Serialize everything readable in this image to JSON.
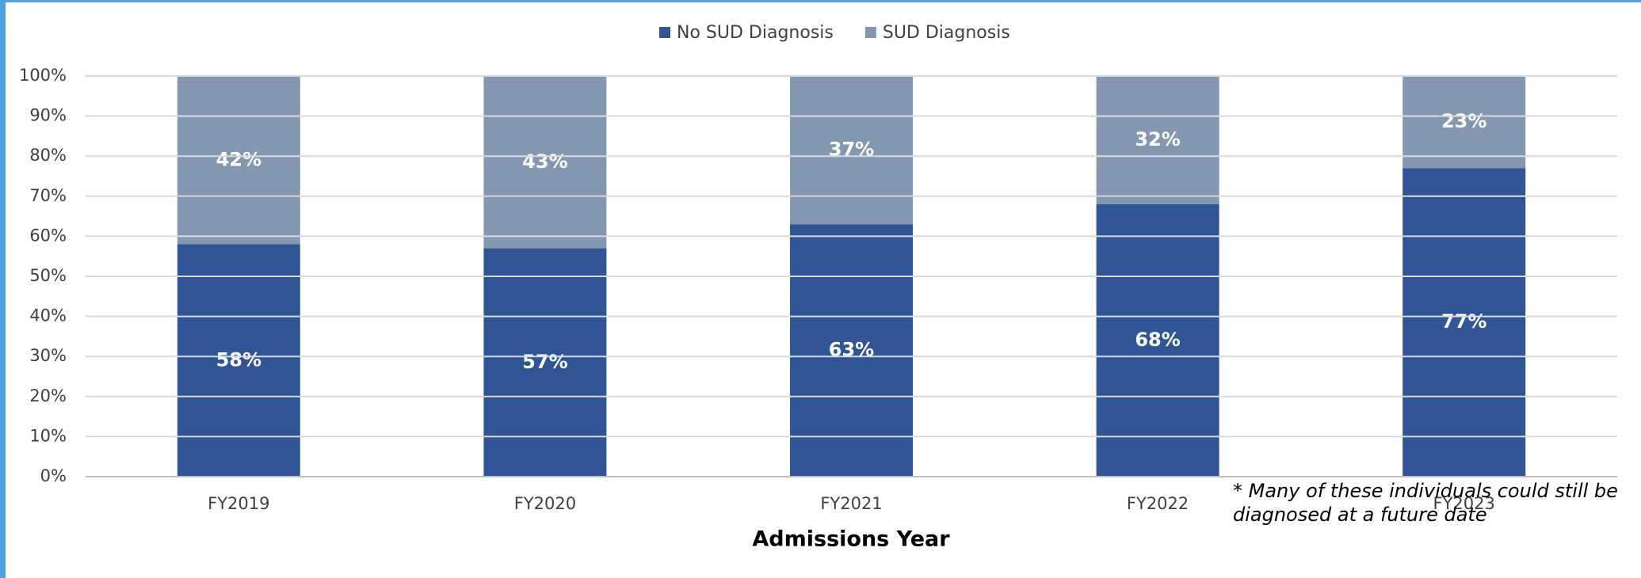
{
  "chart_data": {
    "type": "stacked_bar",
    "categories": [
      "FY2019",
      "FY2020",
      "FY2021",
      "FY2022",
      "FY2023"
    ],
    "series": [
      {
        "name": "No SUD Diagnosis",
        "color": "#2f5597",
        "values": [
          58,
          57,
          63,
          68,
          77
        ],
        "value_labels": [
          "58%",
          "57%",
          "63%",
          "68%",
          "77%"
        ]
      },
      {
        "name": "SUD Diagnosis",
        "color": "#8497b0",
        "values": [
          42,
          43,
          37,
          32,
          23
        ],
        "value_labels": [
          "42%",
          "43%",
          "37%",
          "32%",
          "23%"
        ]
      }
    ],
    "x_label": "Admissions Year",
    "ylim": [
      0,
      100
    ],
    "yticks": [
      {
        "value": 0,
        "label": "0%"
      },
      {
        "value": 10,
        "label": "10%"
      },
      {
        "value": 20,
        "label": "20%"
      },
      {
        "value": 30,
        "label": "30%"
      },
      {
        "value": 40,
        "label": "40%"
      },
      {
        "value": 50,
        "label": "50%"
      },
      {
        "value": 60,
        "label": "60%"
      },
      {
        "value": 70,
        "label": "70%"
      },
      {
        "value": 80,
        "label": "80%"
      },
      {
        "value": 90,
        "label": "90%"
      },
      {
        "value": 100,
        "label": "100%"
      }
    ],
    "grid": true,
    "legend": "top",
    "footnote": [
      "* Many of these individuals could still be",
      "diagnosed at a future date"
    ]
  }
}
